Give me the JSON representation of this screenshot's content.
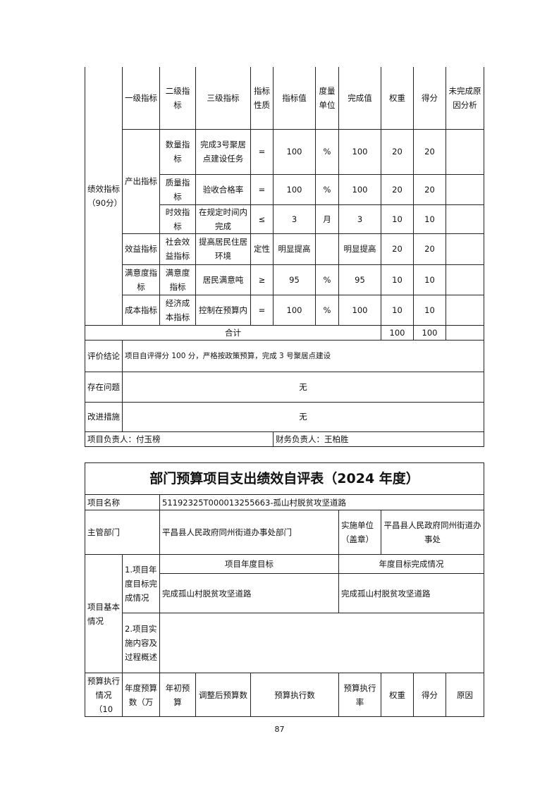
{
  "perf_table": {
    "section_label": "绩效指标（90分）",
    "headers": [
      "一级指标",
      "二级指标",
      "三级指标",
      "指标性质",
      "指标值",
      "度量单位",
      "完成值",
      "权重",
      "得分",
      "未完成原因分析"
    ],
    "rows": [
      {
        "level1": "产出指标",
        "level2": "数量指标",
        "level3": "完成3号聚居点建设任务",
        "nature": "=",
        "target": "100",
        "unit": "%",
        "actual": "100",
        "weight": "20",
        "score": "20",
        "reason": ""
      },
      {
        "level1": "",
        "level2": "质量指标",
        "level3": "验收合格率",
        "nature": "=",
        "target": "100",
        "unit": "%",
        "actual": "100",
        "weight": "20",
        "score": "20",
        "reason": ""
      },
      {
        "level1": "",
        "level2": "时效指标",
        "level3": "在规定时间内完成",
        "nature": "≤",
        "target": "3",
        "unit": "月",
        "actual": "3",
        "weight": "10",
        "score": "10",
        "reason": ""
      },
      {
        "level1": "效益指标",
        "level2": "社会效益指标",
        "level3": "提高居民住居环境",
        "nature": "定性",
        "target": "明显提高",
        "unit": "",
        "actual": "明显提高",
        "weight": "20",
        "score": "20",
        "reason": ""
      },
      {
        "level1": "满意度指标",
        "level2": "满意度指标",
        "level3": "居民满意吨",
        "nature": "≥",
        "target": "95",
        "unit": "%",
        "actual": "95",
        "weight": "10",
        "score": "10",
        "reason": ""
      },
      {
        "level1": "成本指标",
        "level2": "经济成本指标",
        "level3": "控制在预算内",
        "nature": "=",
        "target": "100",
        "unit": "%",
        "actual": "100",
        "weight": "10",
        "score": "10",
        "reason": ""
      }
    ],
    "total_label": "合计",
    "total_weight": "100",
    "total_score": "100",
    "conclusion_label": "评价结论",
    "conclusion": "项目自评得分 100 分，严格按政策预算，完成 3 号聚居点建设",
    "problems_label": "存在问题",
    "problems": "无",
    "improve_label": "改进措施",
    "improve": "无",
    "project_lead": "项目负责人：付玉榜",
    "finance_lead": "财务负责人：王柏胜"
  },
  "form2": {
    "title": "部门预算项目支出绩效自评表（2024 年度）",
    "name_label": "项目名称",
    "name": "51192325T000013255663-孤山村脱贫攻坚道路",
    "dept_label": "主管部门",
    "dept": "平昌县人民政府同州街道办事处部门",
    "impl_label": "实施单位（盖章）",
    "impl": "平昌县人民政府同州街道办事处",
    "basic_label": "项目基本情况",
    "goal_label": "1.项目年度目标完成情况",
    "goal_header": "项目年度目标",
    "done_header": "年度目标完成情况",
    "goal": "完成孤山村脱贫攻坚道路",
    "done": "完成孤山村脱贫攻坚道路",
    "content_label": "2.项目实施内容及过程概述",
    "budget_headers": [
      "预算执行情况（10",
      "年度预算数（万",
      "年初预算",
      "调整后预算数",
      "预算执行数",
      "预算执行率",
      "权重",
      "得分",
      "原因"
    ]
  },
  "page_number": "87"
}
